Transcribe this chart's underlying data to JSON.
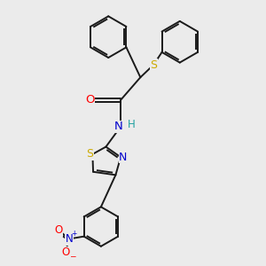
{
  "bg_color": "#ebebeb",
  "bond_color": "#1a1a1a",
  "bond_width": 1.4,
  "atom_colors": {
    "O": "#ff0000",
    "N": "#0000cc",
    "S": "#ccaa00",
    "H": "#20a0a0",
    "C": "#1a1a1a"
  },
  "font_size_atom": 8.5,
  "fig_width": 3.0,
  "fig_height": 3.0,
  "dpi": 100
}
